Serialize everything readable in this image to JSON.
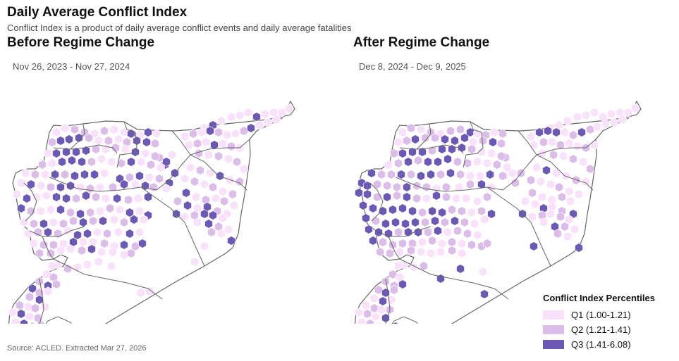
{
  "header": {
    "title": "Daily Average Conflict Index",
    "subtitle": "Conflict Index is a product of daily average conflict events and daily average fatalities"
  },
  "panels": [
    {
      "title": "Before Regime Change",
      "date_range": "Nov 26, 2023 - Nov 27, 2024"
    },
    {
      "title": "After Regime Change",
      "date_range": "Dec 8, 2024 - Dec 9, 2025"
    }
  ],
  "legend": {
    "title": "Conflict Index Percentiles",
    "items": [
      {
        "label": "Q1 (1.00-1.21)",
        "color": "#f9e0fb"
      },
      {
        "label": "Q2 (1.21-1.41)",
        "color": "#dcbde9"
      },
      {
        "label": "Q3 (1.41-6.08)",
        "color": "#6b59b5"
      }
    ]
  },
  "source": "Source: ACLED. Extracted Mar 27, 2026",
  "colors": {
    "border": "#666666",
    "land": "#ffffff",
    "title": "#111111"
  }
}
